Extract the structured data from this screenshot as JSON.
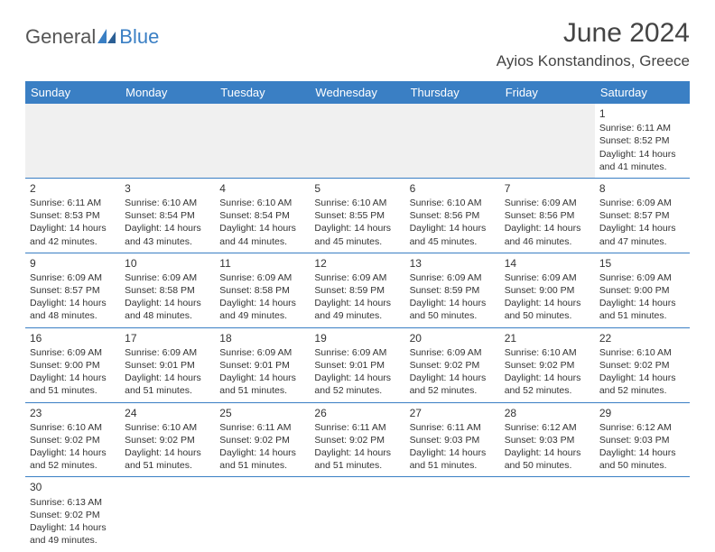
{
  "logo": {
    "text1": "General",
    "text2": "Blue"
  },
  "title": "June 2024",
  "location": "Ayios Konstandinos, Greece",
  "theme": {
    "header_bg": "#3a7fc4",
    "header_text": "#ffffff",
    "row_border": "#3a7fc4",
    "body_bg": "#ffffff",
    "empty_bg": "#f0f0f0",
    "text_color": "#333333",
    "logo_accent": "#3a7fc4",
    "title_fontsize": 30,
    "location_fontsize": 17,
    "cell_fontsize": 10.5
  },
  "weekdays": [
    "Sunday",
    "Monday",
    "Tuesday",
    "Wednesday",
    "Thursday",
    "Friday",
    "Saturday"
  ],
  "weeks": [
    [
      null,
      null,
      null,
      null,
      null,
      null,
      {
        "day": "1",
        "sunrise": "Sunrise: 6:11 AM",
        "sunset": "Sunset: 8:52 PM",
        "daylight": "Daylight: 14 hours and 41 minutes."
      }
    ],
    [
      {
        "day": "2",
        "sunrise": "Sunrise: 6:11 AM",
        "sunset": "Sunset: 8:53 PM",
        "daylight": "Daylight: 14 hours and 42 minutes."
      },
      {
        "day": "3",
        "sunrise": "Sunrise: 6:10 AM",
        "sunset": "Sunset: 8:54 PM",
        "daylight": "Daylight: 14 hours and 43 minutes."
      },
      {
        "day": "4",
        "sunrise": "Sunrise: 6:10 AM",
        "sunset": "Sunset: 8:54 PM",
        "daylight": "Daylight: 14 hours and 44 minutes."
      },
      {
        "day": "5",
        "sunrise": "Sunrise: 6:10 AM",
        "sunset": "Sunset: 8:55 PM",
        "daylight": "Daylight: 14 hours and 45 minutes."
      },
      {
        "day": "6",
        "sunrise": "Sunrise: 6:10 AM",
        "sunset": "Sunset: 8:56 PM",
        "daylight": "Daylight: 14 hours and 45 minutes."
      },
      {
        "day": "7",
        "sunrise": "Sunrise: 6:09 AM",
        "sunset": "Sunset: 8:56 PM",
        "daylight": "Daylight: 14 hours and 46 minutes."
      },
      {
        "day": "8",
        "sunrise": "Sunrise: 6:09 AM",
        "sunset": "Sunset: 8:57 PM",
        "daylight": "Daylight: 14 hours and 47 minutes."
      }
    ],
    [
      {
        "day": "9",
        "sunrise": "Sunrise: 6:09 AM",
        "sunset": "Sunset: 8:57 PM",
        "daylight": "Daylight: 14 hours and 48 minutes."
      },
      {
        "day": "10",
        "sunrise": "Sunrise: 6:09 AM",
        "sunset": "Sunset: 8:58 PM",
        "daylight": "Daylight: 14 hours and 48 minutes."
      },
      {
        "day": "11",
        "sunrise": "Sunrise: 6:09 AM",
        "sunset": "Sunset: 8:58 PM",
        "daylight": "Daylight: 14 hours and 49 minutes."
      },
      {
        "day": "12",
        "sunrise": "Sunrise: 6:09 AM",
        "sunset": "Sunset: 8:59 PM",
        "daylight": "Daylight: 14 hours and 49 minutes."
      },
      {
        "day": "13",
        "sunrise": "Sunrise: 6:09 AM",
        "sunset": "Sunset: 8:59 PM",
        "daylight": "Daylight: 14 hours and 50 minutes."
      },
      {
        "day": "14",
        "sunrise": "Sunrise: 6:09 AM",
        "sunset": "Sunset: 9:00 PM",
        "daylight": "Daylight: 14 hours and 50 minutes."
      },
      {
        "day": "15",
        "sunrise": "Sunrise: 6:09 AM",
        "sunset": "Sunset: 9:00 PM",
        "daylight": "Daylight: 14 hours and 51 minutes."
      }
    ],
    [
      {
        "day": "16",
        "sunrise": "Sunrise: 6:09 AM",
        "sunset": "Sunset: 9:00 PM",
        "daylight": "Daylight: 14 hours and 51 minutes."
      },
      {
        "day": "17",
        "sunrise": "Sunrise: 6:09 AM",
        "sunset": "Sunset: 9:01 PM",
        "daylight": "Daylight: 14 hours and 51 minutes."
      },
      {
        "day": "18",
        "sunrise": "Sunrise: 6:09 AM",
        "sunset": "Sunset: 9:01 PM",
        "daylight": "Daylight: 14 hours and 51 minutes."
      },
      {
        "day": "19",
        "sunrise": "Sunrise: 6:09 AM",
        "sunset": "Sunset: 9:01 PM",
        "daylight": "Daylight: 14 hours and 52 minutes."
      },
      {
        "day": "20",
        "sunrise": "Sunrise: 6:09 AM",
        "sunset": "Sunset: 9:02 PM",
        "daylight": "Daylight: 14 hours and 52 minutes."
      },
      {
        "day": "21",
        "sunrise": "Sunrise: 6:10 AM",
        "sunset": "Sunset: 9:02 PM",
        "daylight": "Daylight: 14 hours and 52 minutes."
      },
      {
        "day": "22",
        "sunrise": "Sunrise: 6:10 AM",
        "sunset": "Sunset: 9:02 PM",
        "daylight": "Daylight: 14 hours and 52 minutes."
      }
    ],
    [
      {
        "day": "23",
        "sunrise": "Sunrise: 6:10 AM",
        "sunset": "Sunset: 9:02 PM",
        "daylight": "Daylight: 14 hours and 52 minutes."
      },
      {
        "day": "24",
        "sunrise": "Sunrise: 6:10 AM",
        "sunset": "Sunset: 9:02 PM",
        "daylight": "Daylight: 14 hours and 51 minutes."
      },
      {
        "day": "25",
        "sunrise": "Sunrise: 6:11 AM",
        "sunset": "Sunset: 9:02 PM",
        "daylight": "Daylight: 14 hours and 51 minutes."
      },
      {
        "day": "26",
        "sunrise": "Sunrise: 6:11 AM",
        "sunset": "Sunset: 9:02 PM",
        "daylight": "Daylight: 14 hours and 51 minutes."
      },
      {
        "day": "27",
        "sunrise": "Sunrise: 6:11 AM",
        "sunset": "Sunset: 9:03 PM",
        "daylight": "Daylight: 14 hours and 51 minutes."
      },
      {
        "day": "28",
        "sunrise": "Sunrise: 6:12 AM",
        "sunset": "Sunset: 9:03 PM",
        "daylight": "Daylight: 14 hours and 50 minutes."
      },
      {
        "day": "29",
        "sunrise": "Sunrise: 6:12 AM",
        "sunset": "Sunset: 9:03 PM",
        "daylight": "Daylight: 14 hours and 50 minutes."
      }
    ],
    [
      {
        "day": "30",
        "sunrise": "Sunrise: 6:13 AM",
        "sunset": "Sunset: 9:02 PM",
        "daylight": "Daylight: 14 hours and 49 minutes."
      },
      null,
      null,
      null,
      null,
      null,
      null
    ]
  ]
}
